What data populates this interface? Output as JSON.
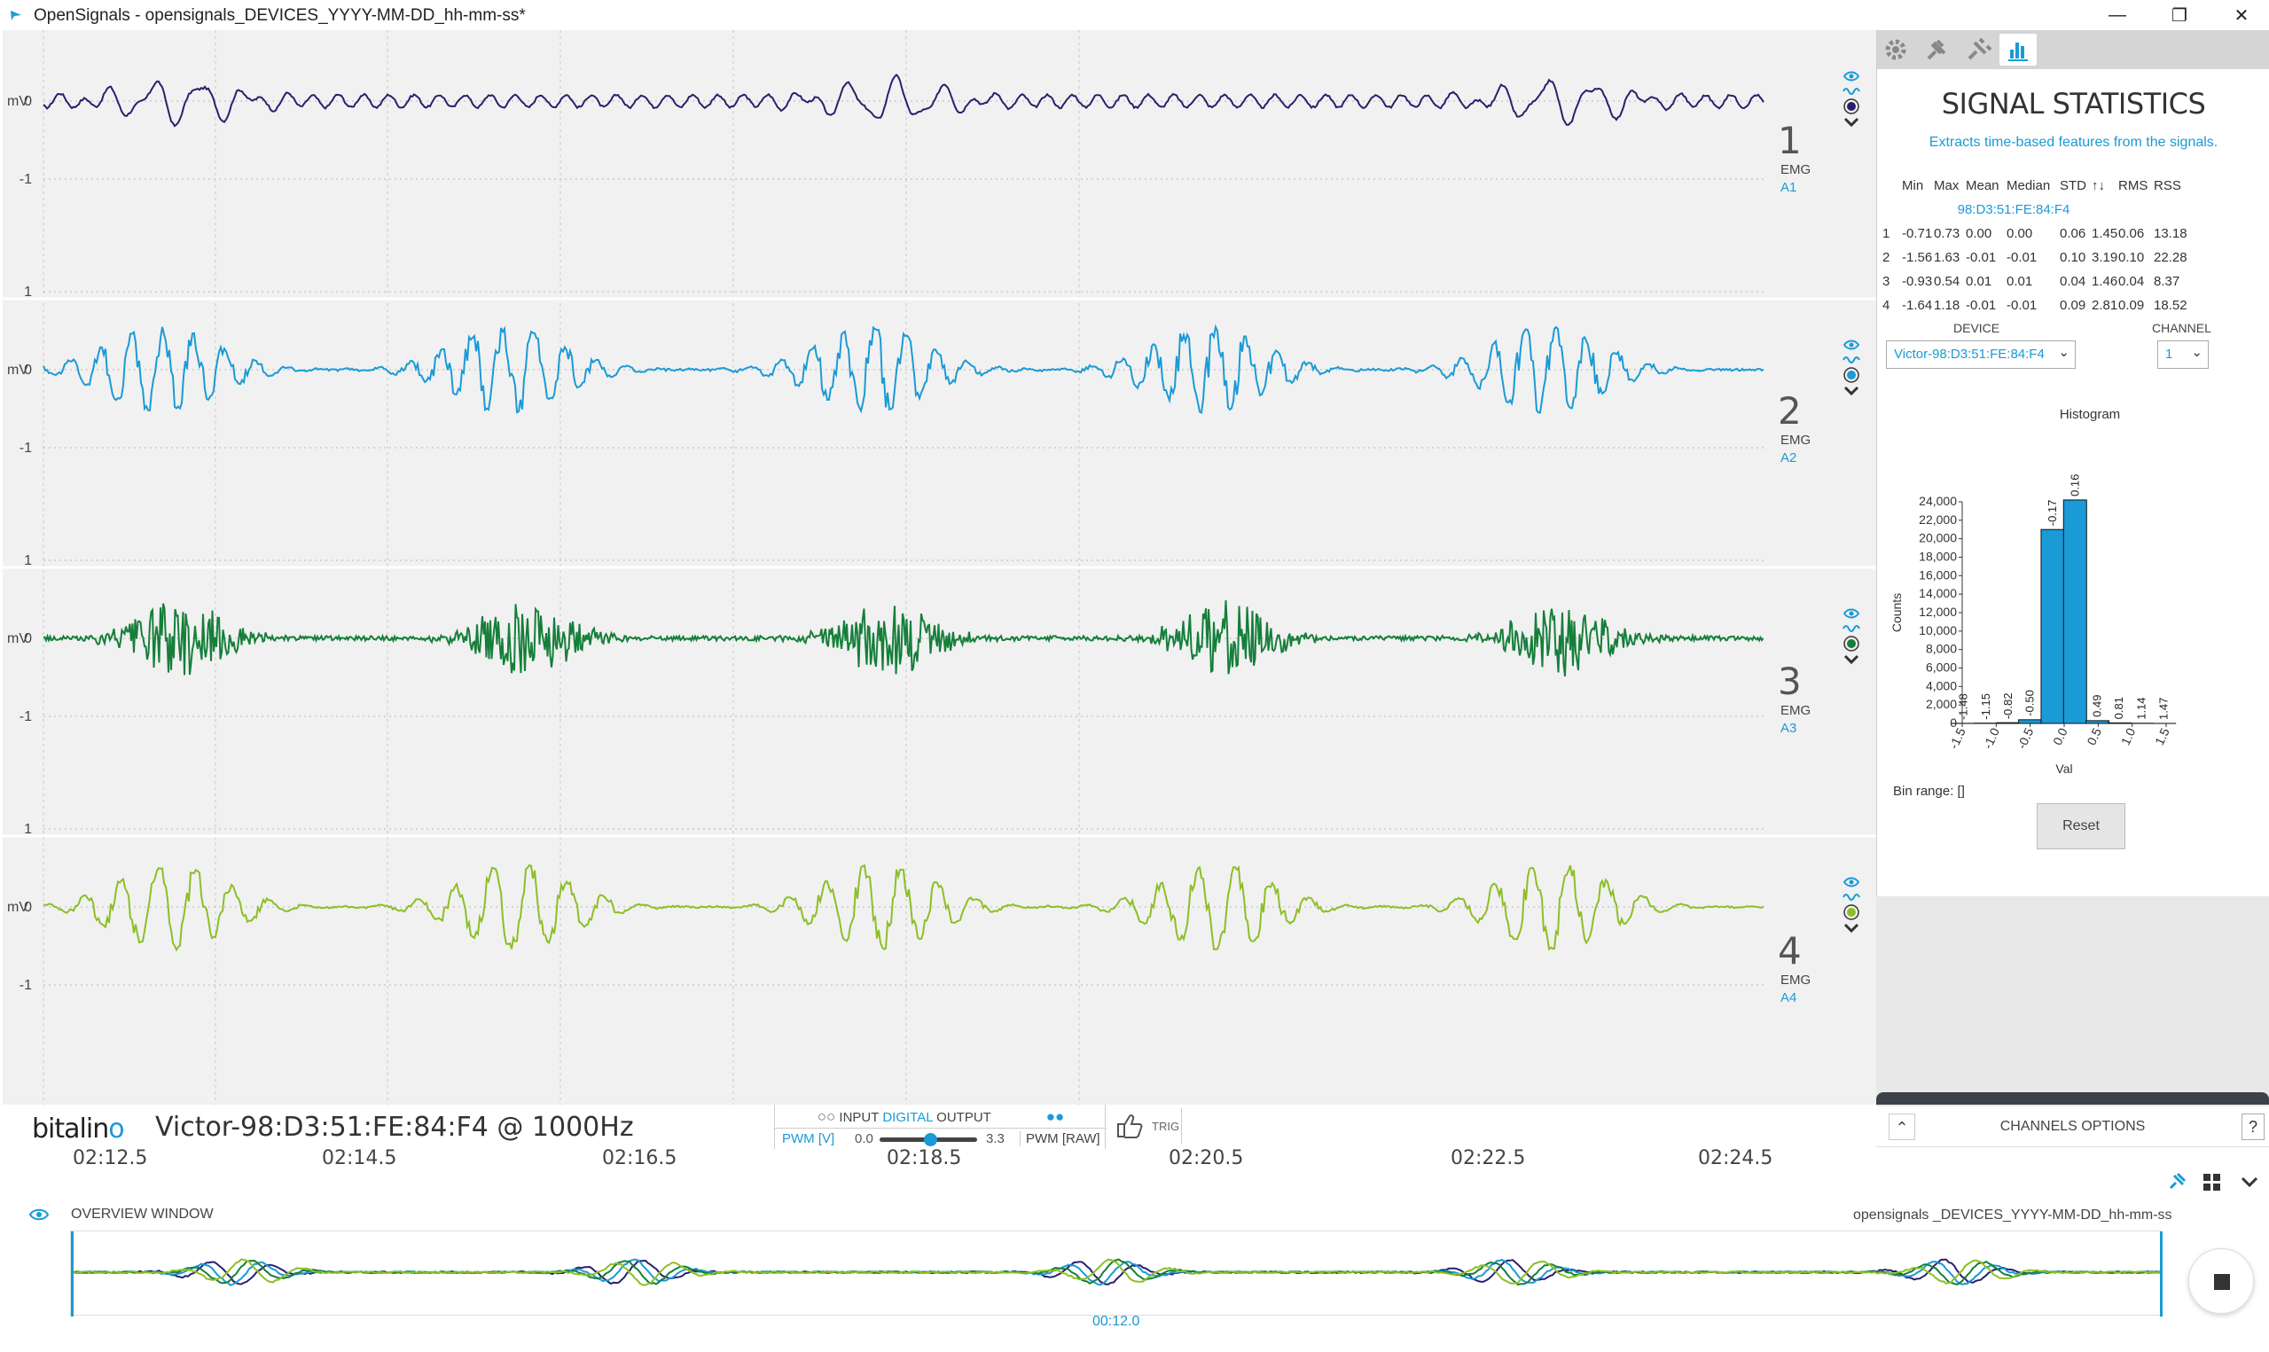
{
  "window": {
    "title": "OpenSignals - opensignals_DEVICES_YYYY-MM-DD_hh-mm-ss*",
    "minimize_glyph": "—",
    "restore_glyph": "❐",
    "close_glyph": "✕"
  },
  "colors": {
    "accent": "#1a9ad6",
    "ch1": "#2a1f6e",
    "ch2": "#1a9ad6",
    "ch3": "#157f3a",
    "ch4": "#8cbf26"
  },
  "channels": [
    {
      "number": "1",
      "type": "EMG",
      "port": "A1",
      "ytick_top": "1",
      "ytick_mid": "0",
      "ytick_bottom": "-1",
      "unit": "mV"
    },
    {
      "number": "2",
      "type": "EMG",
      "port": "A2",
      "ytick_top": "1",
      "ytick_mid": "0",
      "ytick_bottom": "-1",
      "unit": "mV"
    },
    {
      "number": "3",
      "type": "EMG",
      "port": "A3",
      "ytick_top": "1",
      "ytick_mid": "0",
      "ytick_bottom": "-1",
      "unit": "mV"
    },
    {
      "number": "4",
      "type": "EMG",
      "port": "A4",
      "ytick_top": "1",
      "ytick_mid": "0",
      "ytick_bottom": "-1",
      "unit": "mV"
    }
  ],
  "device_bar": {
    "logo_main": "bitalin",
    "logo_tail": "o",
    "device_label": "Victor-98:D3:51:FE:84:F4 @ 1000Hz",
    "io_input": "INPUT",
    "io_digital": "DIGITAL",
    "io_output": "OUTPUT",
    "pwm_v": "PWM [V]",
    "pwm_min": "0.0",
    "pwm_max": "3.3",
    "pwm_raw": "PWM [RAW]",
    "trig": "TRIG"
  },
  "time_axis": {
    "ticks": [
      "02:12.5",
      "02:14.5",
      "02:16.5",
      "02:18.5",
      "02:20.5",
      "02:22.5",
      "02:24.5"
    ]
  },
  "overview": {
    "title": "OVERVIEW WINDOW",
    "file": "opensignals _DEVICES_YYYY-MM-DD_hh-mm-ss",
    "cursor_time": "00:12.0"
  },
  "stats_panel": {
    "title": "SIGNAL STATISTICS",
    "subtitle": "Extracts time-based features from the signals.",
    "headers": [
      "Min",
      "Max",
      "Mean",
      "Median",
      "STD",
      "↑↓",
      "RMS",
      "RSS"
    ],
    "device_mac": "98:D3:51:FE:84:F4",
    "rows": [
      {
        "ch": "1",
        "values": [
          "-0.71",
          "0.73",
          "0.00",
          "0.00",
          "0.06",
          "1.45",
          "0.06",
          "13.18"
        ]
      },
      {
        "ch": "2",
        "values": [
          "-1.56",
          "1.63",
          "-0.01",
          "-0.01",
          "0.10",
          "3.19",
          "0.10",
          "22.28"
        ]
      },
      {
        "ch": "3",
        "values": [
          "-0.93",
          "0.54",
          "0.01",
          "0.01",
          "0.04",
          "1.46",
          "0.04",
          "8.37"
        ]
      },
      {
        "ch": "4",
        "values": [
          "-1.64",
          "1.18",
          "-0.01",
          "-0.01",
          "0.09",
          "2.81",
          "0.09",
          "18.52"
        ]
      }
    ],
    "device_label": "DEVICE",
    "device_value": "Victor-98:D3:51:FE:84:F4",
    "channel_label": "CHANNEL",
    "channel_value": "1",
    "bin_range": "Bin range: []",
    "reset_label": "Reset",
    "channels_options": "CHANNELS OPTIONS"
  },
  "chart_data": {
    "type": "bar",
    "title": "Histogram",
    "xlabel": "Val",
    "ylabel": "Counts",
    "x": [
      -1.48,
      -1.15,
      -0.82,
      -0.5,
      -0.17,
      0.16,
      0.49,
      0.81,
      1.14,
      1.47
    ],
    "bar_labels": [
      "-1.48",
      "-1.15",
      "-0.82",
      "-0.50",
      "-0.17",
      "0.16",
      "0.49",
      "0.81",
      "1.14",
      "1.47"
    ],
    "values": [
      10,
      30,
      80,
      400,
      21000,
      24200,
      300,
      60,
      20,
      5
    ],
    "ylim": [
      0,
      24000
    ],
    "xlim": [
      -1.5,
      1.5
    ],
    "yticks": [
      "0",
      "2,000",
      "4,000",
      "6,000",
      "8,000",
      "10,000",
      "12,000",
      "14,000",
      "16,000",
      "18,000",
      "20,000",
      "22,000",
      "24,000"
    ],
    "xticks": [
      "-1.5",
      "-1.0",
      "-0.5",
      "0.0",
      "0.5",
      "1.0",
      "1.5"
    ]
  }
}
